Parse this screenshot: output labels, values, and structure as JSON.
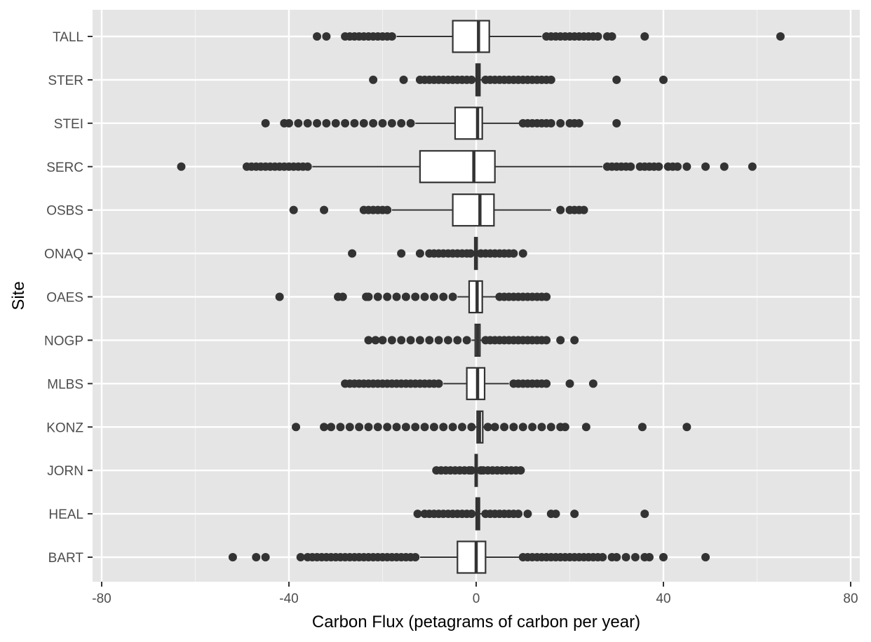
{
  "chart_data": {
    "type": "boxplot",
    "orientation": "horizontal",
    "xlabel": "Carbon Flux (petagrams of carbon per year)",
    "ylabel": "Site",
    "xlim": [
      -82,
      82
    ],
    "x_ticks": [
      -80,
      -40,
      0,
      40,
      80
    ],
    "x_tick_labels": [
      "-80",
      "-40",
      "0",
      "40",
      "80"
    ],
    "grid": true,
    "categories": [
      "TALL",
      "STER",
      "STEI",
      "SERC",
      "OSBS",
      "ONAQ",
      "OAES",
      "NOGP",
      "MLBS",
      "KONZ",
      "JORN",
      "HEAL",
      "BART"
    ],
    "boxes": [
      {
        "site": "TALL",
        "whisker_low": -17,
        "q1": -5,
        "median": 0.5,
        "q3": 2.8,
        "whisker_high": 14,
        "outliers": [
          -34,
          -32,
          -28,
          -27,
          -26,
          -25,
          -24,
          -23,
          -22,
          -21,
          -20,
          -19,
          -18,
          15,
          16,
          17,
          18,
          19,
          20,
          21,
          22,
          23,
          24,
          25,
          26,
          28,
          29,
          36,
          65
        ]
      },
      {
        "site": "STER",
        "whisker_low": -0.6,
        "q1": 0,
        "median": 0.4,
        "q3": 0.8,
        "whisker_high": 1.4,
        "outliers": [
          -22,
          -15.5,
          -12,
          -11,
          -10,
          -9,
          -8,
          -7,
          -6,
          -5,
          -4,
          -3,
          -2,
          -1,
          2,
          3,
          4,
          5,
          6,
          7,
          8,
          9,
          10,
          11,
          12,
          13,
          14,
          15,
          16,
          30,
          40
        ]
      },
      {
        "site": "STEI",
        "whisker_low": -13,
        "q1": -4.5,
        "median": 0.3,
        "q3": 1.3,
        "whisker_high": 9.5,
        "outliers": [
          -45,
          -41,
          -40,
          -38,
          -36,
          -34,
          -32,
          -30,
          -28,
          -26,
          -24,
          -22,
          -20,
          -18,
          -16,
          -14,
          10,
          11,
          12,
          13,
          14,
          15,
          16,
          18,
          20,
          21,
          22,
          30
        ]
      },
      {
        "site": "SERC",
        "whisker_low": -35,
        "q1": -12,
        "median": -0.5,
        "q3": 4,
        "whisker_high": 27,
        "outliers": [
          -63,
          -49,
          -48,
          -47,
          -46,
          -45,
          -44,
          -43,
          -42,
          -41,
          -40,
          -39,
          -38,
          -37,
          -36,
          28,
          29,
          30,
          31,
          32,
          33,
          35,
          36,
          37,
          38,
          39,
          41,
          42,
          43,
          45,
          49,
          53,
          59
        ]
      },
      {
        "site": "OSBS",
        "whisker_low": -18,
        "q1": -5,
        "median": 0.8,
        "q3": 3.8,
        "whisker_high": 16,
        "outliers": [
          -39,
          -32.5,
          -24,
          -23,
          -22,
          -21,
          -20,
          -19,
          18,
          20,
          21,
          22,
          23
        ]
      },
      {
        "site": "ONAQ",
        "whisker_low": -0.9,
        "q1": -0.3,
        "median": 0,
        "q3": 0.2,
        "whisker_high": 0.6,
        "outliers": [
          -26.5,
          -16,
          -12,
          -10,
          -9,
          -8,
          -7,
          -6,
          -5,
          -4,
          -3,
          -2,
          -1.2,
          1,
          2,
          3,
          4,
          5,
          6,
          7,
          8,
          10
        ]
      },
      {
        "site": "OAES",
        "whisker_low": -4,
        "q1": -1.5,
        "median": 0.2,
        "q3": 1.3,
        "whisker_high": 4.5,
        "outliers": [
          -42,
          -29.5,
          -28.5,
          -23.5,
          -23,
          -21,
          -19,
          -17,
          -15,
          -13,
          -11,
          -9,
          -7,
          -5,
          5,
          6,
          7,
          8,
          9,
          10,
          11,
          12,
          13,
          14,
          15
        ]
      },
      {
        "site": "NOGP",
        "whisker_low": -1,
        "q1": -0.2,
        "median": 0.3,
        "q3": 0.8,
        "whisker_high": 1.5,
        "outliers": [
          -23,
          -21.5,
          -20,
          -18,
          -16,
          -14,
          -12,
          -10,
          -8,
          -6,
          -4,
          -2,
          2,
          3,
          4,
          5,
          6,
          7,
          8,
          9,
          10,
          11,
          12,
          13,
          14,
          15,
          18,
          21
        ]
      },
      {
        "site": "MLBS",
        "whisker_low": -7,
        "q1": -2,
        "median": 0.3,
        "q3": 1.8,
        "whisker_high": 7,
        "outliers": [
          -28,
          -27,
          -26,
          -25,
          -24,
          -23,
          -22,
          -21,
          -20,
          -19,
          -18,
          -17,
          -16,
          -15,
          -14,
          -13,
          -12,
          -11,
          -10,
          -9,
          -8,
          8,
          9,
          10,
          11,
          12,
          13,
          14,
          15,
          20,
          25
        ]
      },
      {
        "site": "KONZ",
        "whisker_low": -0.6,
        "q1": 0.2,
        "median": 0.7,
        "q3": 1.4,
        "whisker_high": 2,
        "outliers": [
          -38.5,
          -32.5,
          -31,
          -29,
          -27,
          -25,
          -23,
          -21,
          -19,
          -17,
          -15,
          -13,
          -11,
          -9,
          -7,
          -5,
          -3,
          -1,
          2.5,
          4,
          6,
          8,
          10,
          12,
          14,
          16,
          18,
          19,
          23.5,
          35.5,
          45
        ]
      },
      {
        "site": "JORN",
        "whisker_low": -0.7,
        "q1": -0.2,
        "median": 0,
        "q3": 0.2,
        "whisker_high": 0.6,
        "outliers": [
          -8.5,
          -7.5,
          -6.5,
          -5.5,
          -4.5,
          -3.5,
          -2.5,
          -1.5,
          -1,
          1,
          1.5,
          2.5,
          3.5,
          4.5,
          5.5,
          6.5,
          7.5,
          8.5,
          9.5
        ]
      },
      {
        "site": "HEAL",
        "whisker_low": -0.7,
        "q1": 0,
        "median": 0.3,
        "q3": 0.7,
        "whisker_high": 1.4,
        "outliers": [
          -12.5,
          -11,
          -10,
          -9,
          -8,
          -7,
          -6,
          -5,
          -4,
          -3,
          -2,
          -1,
          2,
          3,
          4,
          5,
          6,
          7,
          8,
          9,
          11,
          16,
          17,
          21,
          36
        ]
      },
      {
        "site": "BART",
        "whisker_low": -12,
        "q1": -4,
        "median": 0,
        "q3": 2,
        "whisker_high": 10,
        "outliers": [
          -52,
          -47,
          -45,
          -37.5,
          -36,
          -35,
          -34,
          -33,
          -32,
          -31,
          -30,
          -29,
          -28,
          -27,
          -26,
          -25,
          -24,
          -23,
          -22,
          -21,
          -20,
          -19,
          -18,
          -17,
          -16,
          -15,
          -14,
          -13,
          10,
          11,
          12,
          13,
          14,
          15,
          16,
          17,
          18,
          19,
          20,
          21,
          22,
          23,
          24,
          25,
          26,
          27,
          29,
          30,
          32,
          34,
          36,
          37,
          40,
          49
        ]
      }
    ]
  }
}
